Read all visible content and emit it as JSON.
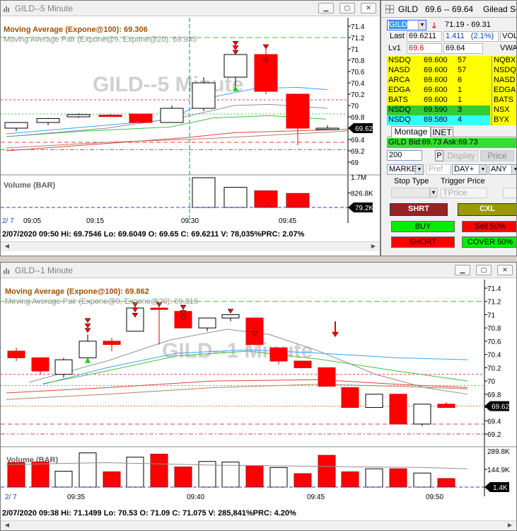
{
  "chart5": {
    "title": "GILD--5 Minute",
    "watermark": "GILD--5 Minute",
    "indicator1": "Moving Average (Expone@100): 69.306",
    "indicator2": "Moving Average Pair (Expone@9, Expone@20): 69.935",
    "volume_label": "Volume (BAR)",
    "status": "2/07/2020 09:50  Hi: 69.7546  Lo: 69.6049  O: 69.65  C: 69.6211  V: 78,035%PRC: 2.07%",
    "price_ticks": [
      "71.4",
      "71.2",
      "71",
      "70.8",
      "70.6",
      "70.4",
      "70.2",
      "70",
      "69.8",
      "69.6",
      "69.4",
      "69.2",
      "69"
    ],
    "volume_ticks": [
      "1.7M",
      "826.8K"
    ],
    "last_price_tag": "69.62",
    "volume_tag": "79.2K",
    "time_ticks": [
      "09:05",
      "09:15",
      "09:30",
      "09:45"
    ],
    "date_marker": "2/ 7"
  },
  "chart1": {
    "title": "GILD--1 Minute",
    "watermark": "GILD--1 Minute",
    "indicator1": "Moving Average (Expone@100): 69.862",
    "indicator2": "Moving Average Pair (Expone@9, Expone@20): 69.816",
    "volume_label": "Volume (BAR)",
    "status": "2/07/2020 09:38  Hi: 71.1499  Lo: 70.53  O: 71.09  C: 71.075  V: 285,841%PRC: 4.20%",
    "price_ticks": [
      "71.4",
      "71.2",
      "71",
      "70.8",
      "70.6",
      "70.4",
      "70.2",
      "70",
      "69.8",
      "69.6",
      "69.4",
      "69.2"
    ],
    "volume_ticks": [
      "289.8K",
      "144.9K",
      "0"
    ],
    "last_price_tag": "69.62",
    "volume_tag": "1.4K",
    "time_ticks": [
      "09:35",
      "09:40",
      "09:45",
      "09:50"
    ],
    "date_marker": "2/ 7"
  },
  "panel": {
    "symbol": "GILD",
    "quote": "69.6 -- 69.64",
    "company": "Gilead Scien",
    "symbol_field": "GILD",
    "range": "71.19 - 69.31",
    "last_label": "Last",
    "last_value": "69.6211",
    "change": "1.411",
    "change_pct": "(2.1%)",
    "vol_value": "VOL",
    "lv1_label": "Lv1",
    "bid": "69.6",
    "ask": "69.64",
    "vwap_label": "VWA",
    "level2": [
      {
        "ex": "NSDQ",
        "price": "69.600",
        "size": "57",
        "right": "NQBX",
        "bg": "#ffff00",
        "rbg": "#ffff00"
      },
      {
        "ex": "NASD",
        "price": "69.600",
        "size": "57",
        "right": "NSDQ",
        "bg": "#ffff00",
        "rbg": "#ffff00"
      },
      {
        "ex": "ARCA",
        "price": "69.600",
        "size": "6",
        "right": "NASD",
        "bg": "#ffff00",
        "rbg": "#ffff00"
      },
      {
        "ex": "EDGA",
        "price": "69.600",
        "size": "1",
        "right": "EDGA",
        "bg": "#ffff00",
        "rbg": "#ffff00"
      },
      {
        "ex": "BATS",
        "price": "69.600",
        "size": "1",
        "right": "BATS",
        "bg": "#ffff00",
        "rbg": "#ffff00"
      },
      {
        "ex": "NSDQ",
        "price": "69.590",
        "size": "3",
        "right": "NSX",
        "bg": "#33cc33",
        "rbg": "#ffff00"
      },
      {
        "ex": "NSDQ",
        "price": "69.580",
        "size": "4",
        "right": "BYX",
        "bg": "#33ffff",
        "rbg": "#ffff00"
      }
    ],
    "tab_montage": "Montage",
    "tab_inet": "INET",
    "bidask": "GILD Bid:69.73 Ask:69.73",
    "qty": "200",
    "p_label": "P",
    "display_btn": "Display",
    "price_btn": "Price",
    "order_type": "MARKET",
    "pref_placeholder": "Pref",
    "tif": "DAY+",
    "route": "ANY",
    "stop_type_label": "Stop Type",
    "trigger_label": "Trigger Price",
    "tprice_placeholder": "TPrice",
    "shrt_btn": "SHRT",
    "cxl_btn": "CXL",
    "buy_btn": "BUY",
    "sell50_btn": "Sell 50%",
    "short_btn": "SHORT",
    "cover50_btn": "COVER 50%"
  },
  "colors": {
    "up": "#ffffff",
    "down": "#ff0000",
    "ma100": "#ff4040",
    "ema9": "#40a0ff",
    "ema20": "#40c040"
  }
}
